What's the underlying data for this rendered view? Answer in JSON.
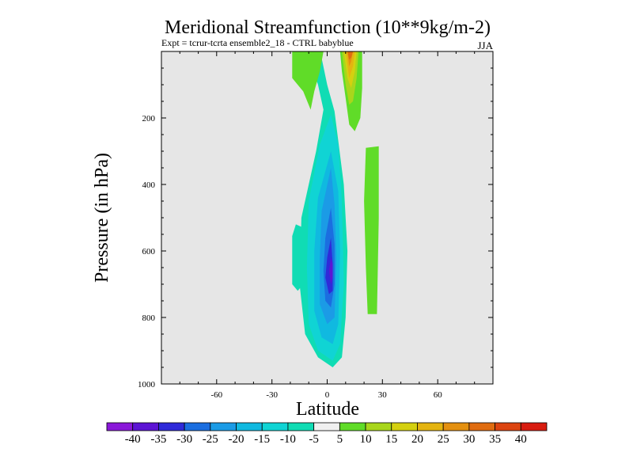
{
  "chart_data": {
    "type": "contour",
    "title": "Meridional Streamfunction (10**9kg/m-2)",
    "subtitle": "Expt = tcrur-tcrta   ensemble2_18 - CTRL babyblue",
    "season": "JJA",
    "xlabel": "Latitude",
    "ylabel": "Pressure (in hPa)",
    "xlim": [
      -90,
      90
    ],
    "ylim": [
      1000,
      0
    ],
    "x_ticks": [
      -60,
      -30,
      0,
      30,
      60
    ],
    "y_ticks": [
      200,
      400,
      600,
      800,
      1000
    ],
    "background_color": "#e6e6e6",
    "colorbar": {
      "labels": [
        "-40",
        "-35",
        "-30",
        "-25",
        "-20",
        "-15",
        "-10",
        "-5",
        "5",
        "10",
        "15",
        "20",
        "25",
        "30",
        "35",
        "40"
      ],
      "colors": [
        "#8a18d9",
        "#5c14d4",
        "#2f2ad9",
        "#1b6ee0",
        "#1b9be6",
        "#10b9e0",
        "#10d4d4",
        "#10dcb4",
        "#f0f0f0",
        "#60dc28",
        "#a8d61c",
        "#d4d010",
        "#e4b410",
        "#e49010",
        "#e06c10",
        "#dc4410",
        "#d81c10"
      ]
    },
    "features": [
      {
        "name": "negative-cell",
        "level": "-40",
        "center_lat": 3,
        "pressure_range": [
          20,
          950
        ]
      },
      {
        "name": "positive-upper-jet",
        "level": "35",
        "center_lat": 12,
        "pressure_range": [
          0,
          240
        ]
      },
      {
        "name": "positive-upper-left",
        "level": "5",
        "center_lat": -10,
        "pressure_range": [
          0,
          175
        ]
      },
      {
        "name": "positive-band",
        "level": "5",
        "center_lat": 25,
        "pressure_range": [
          290,
          790
        ]
      }
    ]
  }
}
